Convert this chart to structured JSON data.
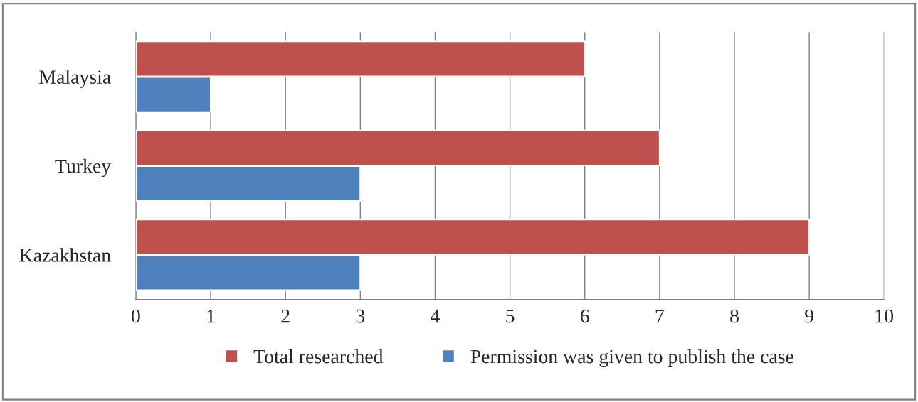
{
  "chart_data": {
    "type": "bar",
    "orientation": "horizontal",
    "categories": [
      "Malaysia",
      "Turkey",
      "Kazakhstan"
    ],
    "series": [
      {
        "name": "Total researched",
        "color": "#c0504d",
        "values": [
          6,
          7,
          9
        ]
      },
      {
        "name": "Permission was given to publish the case",
        "color": "#4f81bd",
        "values": [
          1,
          3,
          3
        ]
      }
    ],
    "xlim": [
      0,
      10
    ],
    "xticks": [
      0,
      1,
      2,
      3,
      4,
      5,
      6,
      7,
      8,
      9,
      10
    ],
    "grid": "x",
    "legend": "bottom"
  }
}
